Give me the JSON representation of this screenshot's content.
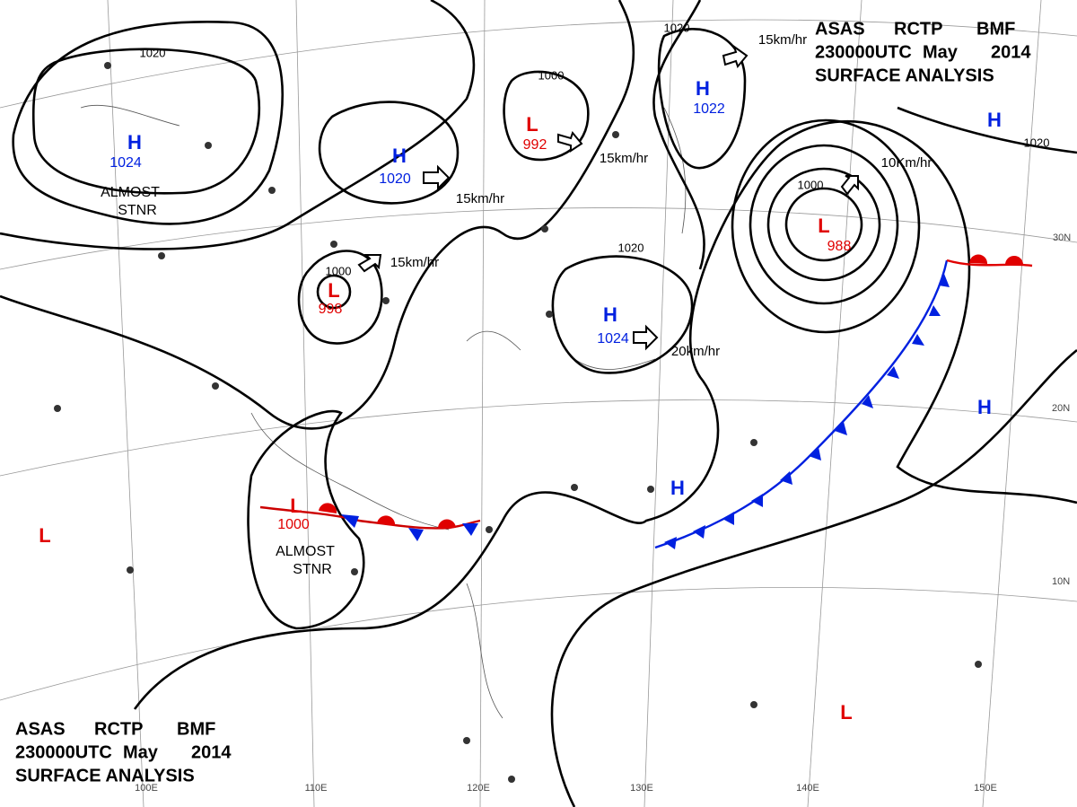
{
  "header_top": {
    "line1": [
      "ASAS",
      "RCTP",
      "BMF"
    ],
    "line2": [
      "230000UTC",
      "May",
      "2014"
    ],
    "line3": "SURFACE ANALYSIS"
  },
  "header_bottom": {
    "line1": [
      "ASAS",
      "RCTP",
      "BMF"
    ],
    "line2": [
      "230000UTC",
      "May",
      "2014"
    ],
    "line3": "SURFACE ANALYSIS"
  },
  "centers": [
    {
      "type": "H",
      "value": "1024",
      "note": "ALMOST STNR"
    },
    {
      "type": "H",
      "value": "1020"
    },
    {
      "type": "L",
      "value": "992"
    },
    {
      "type": "L",
      "value": "998"
    },
    {
      "type": "H",
      "value": "1022"
    },
    {
      "type": "L",
      "value": "988"
    },
    {
      "type": "H",
      "value": "1024"
    },
    {
      "type": "L",
      "value": "1000",
      "note": "ALMOST STNR"
    },
    {
      "type": "H"
    },
    {
      "type": "H"
    },
    {
      "type": "H"
    },
    {
      "type": "L"
    },
    {
      "type": "L"
    }
  ],
  "isobar_labels": [
    "1020",
    "1020",
    "1020",
    "1020",
    "1000",
    "1000",
    "1000"
  ],
  "motion_labels": [
    "15km/hr",
    "15km/hr",
    "15km/hr",
    "15km/hr",
    "10Km/hr",
    "20km/hr"
  ],
  "latitude_labels": [
    "30N",
    "20N",
    "10N"
  ],
  "longitude_labels": [
    "100E",
    "110E",
    "120E",
    "130E",
    "140E",
    "150E"
  ]
}
